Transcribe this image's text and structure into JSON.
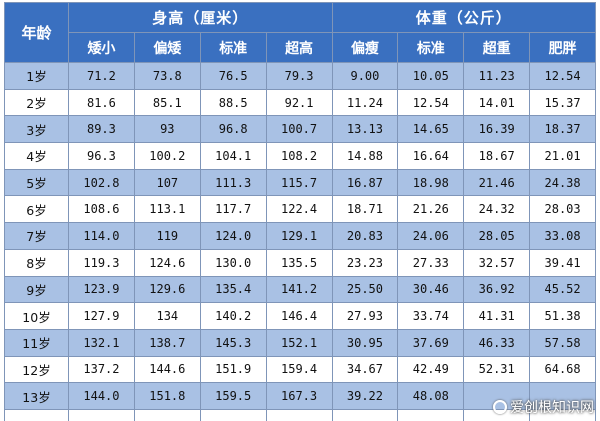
{
  "table": {
    "age_header": "年龄",
    "groups": [
      {
        "title": "身高（厘米）",
        "columns": [
          "矮小",
          "偏矮",
          "标准",
          "超高"
        ]
      },
      {
        "title": "体重（公斤）",
        "columns": [
          "偏瘦",
          "标准",
          "超重",
          "肥胖"
        ]
      }
    ],
    "rows": [
      {
        "age": "1岁",
        "values": [
          "71.2",
          "73.8",
          "76.5",
          "79.3",
          "9.00",
          "10.05",
          "11.23",
          "12.54"
        ]
      },
      {
        "age": "2岁",
        "values": [
          "81.6",
          "85.1",
          "88.5",
          "92.1",
          "11.24",
          "12.54",
          "14.01",
          "15.37"
        ]
      },
      {
        "age": "3岁",
        "values": [
          "89.3",
          "93",
          "96.8",
          "100.7",
          "13.13",
          "14.65",
          "16.39",
          "18.37"
        ]
      },
      {
        "age": "4岁",
        "values": [
          "96.3",
          "100.2",
          "104.1",
          "108.2",
          "14.88",
          "16.64",
          "18.67",
          "21.01"
        ]
      },
      {
        "age": "5岁",
        "values": [
          "102.8",
          "107",
          "111.3",
          "115.7",
          "16.87",
          "18.98",
          "21.46",
          "24.38"
        ]
      },
      {
        "age": "6岁",
        "values": [
          "108.6",
          "113.1",
          "117.7",
          "122.4",
          "18.71",
          "21.26",
          "24.32",
          "28.03"
        ]
      },
      {
        "age": "7岁",
        "values": [
          "114.0",
          "119",
          "124.0",
          "129.1",
          "20.83",
          "24.06",
          "28.05",
          "33.08"
        ]
      },
      {
        "age": "8岁",
        "values": [
          "119.3",
          "124.6",
          "130.0",
          "135.5",
          "23.23",
          "27.33",
          "32.57",
          "39.41"
        ]
      },
      {
        "age": "9岁",
        "values": [
          "123.9",
          "129.6",
          "135.4",
          "141.2",
          "25.50",
          "30.46",
          "36.92",
          "45.52"
        ]
      },
      {
        "age": "10岁",
        "values": [
          "127.9",
          "134",
          "140.2",
          "146.4",
          "27.93",
          "33.74",
          "41.31",
          "51.38"
        ]
      },
      {
        "age": "11岁",
        "values": [
          "132.1",
          "138.7",
          "145.3",
          "152.1",
          "30.95",
          "37.69",
          "46.33",
          "57.58"
        ]
      },
      {
        "age": "12岁",
        "values": [
          "137.2",
          "144.6",
          "151.9",
          "159.4",
          "34.67",
          "42.49",
          "52.31",
          "64.68"
        ]
      },
      {
        "age": "13岁",
        "values": [
          "144.0",
          "151.8",
          "159.5",
          "167.3",
          "39.22",
          "48.08",
          "",
          ""
        ]
      },
      {
        "age": "",
        "values": [
          "",
          "",
          "",
          "",
          "",
          "",
          "",
          ""
        ]
      }
    ]
  },
  "watermark": {
    "text": "爱创根知识网"
  }
}
